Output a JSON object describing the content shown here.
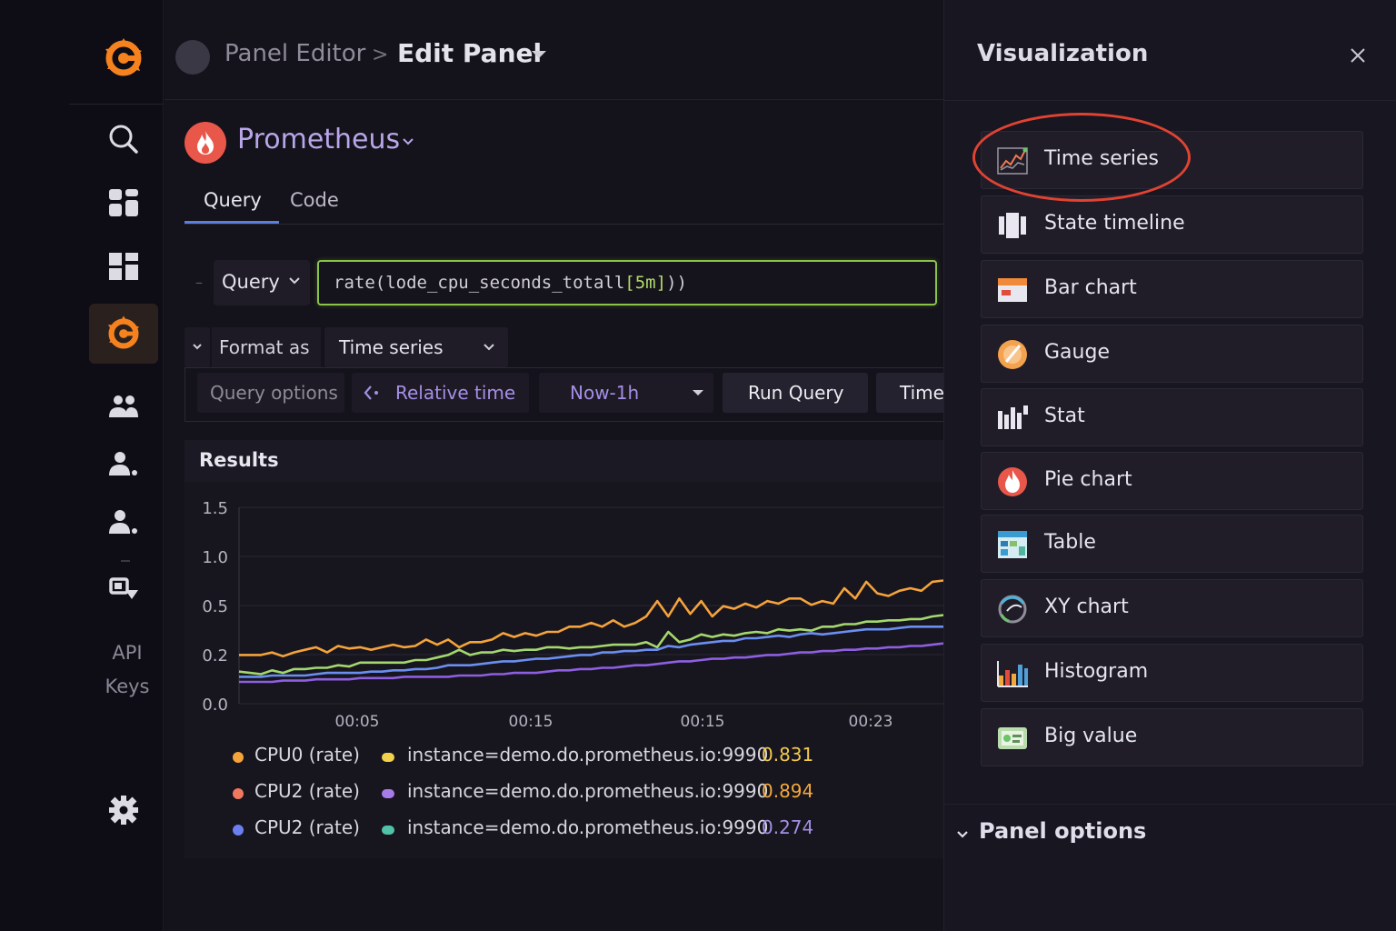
{
  "breadcrumb": {
    "parent": "Panel Editor",
    "separator": ">",
    "current": "Edit Panel"
  },
  "nav": {
    "items": [
      "search-icon",
      "dashboards-icon",
      "panels-icon",
      "grafana-icon",
      "teams-icon",
      "user-icon",
      "users-icon",
      "plugins-icon",
      "gear-icon"
    ],
    "api_keys": [
      "API",
      "Keys"
    ],
    "active": "grafana-icon"
  },
  "datasource": {
    "name": "Prometheus"
  },
  "tabs": [
    {
      "label": "Query"
    },
    {
      "label": "Code"
    }
  ],
  "query": {
    "type_label": "Query",
    "expr_prefix": "rate(lode_cpu_seconds_totall",
    "expr_range": "[5m]",
    "expr_suffix": "))"
  },
  "format": {
    "label": "Format as",
    "value": "Time series"
  },
  "options": {
    "query_options": "Query options",
    "relative_time": "Relative time",
    "time_range": "Now-1h",
    "run_query": "Run Query",
    "time": "Time"
  },
  "results": {
    "title": "Results"
  },
  "colors": {
    "accent": "#a48fe6",
    "orange": "#f5a33b",
    "green": "#a4d86e",
    "blue": "#6b8ff0",
    "purple": "#8e5fe0",
    "highlight_ring": "#e14332"
  },
  "chart_data": {
    "type": "line",
    "y_ticks": [
      "1.5",
      "1.0",
      "0.5",
      "0.2",
      "0.0"
    ],
    "x_ticks": [
      "00:05",
      "00:15",
      "00:15",
      "00:23"
    ],
    "ylim": [
      0,
      1.5
    ],
    "series": [
      {
        "color": "#f5a33b",
        "values": [
          0.38,
          0.38,
          0.38,
          0.4,
          0.37,
          0.4,
          0.42,
          0.44,
          0.4,
          0.45,
          0.43,
          0.44,
          0.42,
          0.44,
          0.46,
          0.44,
          0.45,
          0.5,
          0.46,
          0.5,
          0.44,
          0.48,
          0.48,
          0.5,
          0.55,
          0.52,
          0.55,
          0.53,
          0.56,
          0.56,
          0.6,
          0.6,
          0.63,
          0.6,
          0.65,
          0.6,
          0.63,
          0.68,
          0.8,
          0.68,
          0.82,
          0.7,
          0.8,
          0.68,
          0.76,
          0.74,
          0.78,
          0.75,
          0.8,
          0.78,
          0.82,
          0.82,
          0.77,
          0.8,
          0.78,
          0.9,
          0.82,
          0.95,
          0.86,
          0.84,
          0.88,
          0.9,
          0.88,
          0.95,
          0.96
        ]
      },
      {
        "color": "#a4d86e",
        "values": [
          0.25,
          0.24,
          0.23,
          0.26,
          0.24,
          0.27,
          0.27,
          0.28,
          0.28,
          0.3,
          0.29,
          0.32,
          0.32,
          0.32,
          0.32,
          0.32,
          0.34,
          0.34,
          0.36,
          0.38,
          0.42,
          0.38,
          0.4,
          0.4,
          0.42,
          0.41,
          0.42,
          0.42,
          0.44,
          0.44,
          0.43,
          0.44,
          0.44,
          0.45,
          0.46,
          0.46,
          0.46,
          0.48,
          0.44,
          0.56,
          0.48,
          0.5,
          0.54,
          0.52,
          0.54,
          0.53,
          0.55,
          0.56,
          0.55,
          0.58,
          0.57,
          0.58,
          0.57,
          0.6,
          0.6,
          0.62,
          0.62,
          0.64,
          0.64,
          0.65,
          0.65,
          0.66,
          0.66,
          0.68,
          0.69
        ]
      },
      {
        "color": "#6b8ff0",
        "values": [
          0.21,
          0.21,
          0.21,
          0.22,
          0.22,
          0.22,
          0.22,
          0.23,
          0.24,
          0.24,
          0.24,
          0.24,
          0.25,
          0.25,
          0.26,
          0.26,
          0.27,
          0.27,
          0.28,
          0.3,
          0.3,
          0.3,
          0.31,
          0.32,
          0.33,
          0.33,
          0.34,
          0.35,
          0.35,
          0.36,
          0.37,
          0.38,
          0.38,
          0.4,
          0.4,
          0.41,
          0.41,
          0.42,
          0.42,
          0.45,
          0.44,
          0.46,
          0.47,
          0.48,
          0.49,
          0.49,
          0.51,
          0.51,
          0.52,
          0.53,
          0.52,
          0.54,
          0.55,
          0.54,
          0.55,
          0.56,
          0.57,
          0.58,
          0.58,
          0.58,
          0.59,
          0.6,
          0.6,
          0.6,
          0.6
        ]
      },
      {
        "color": "#8e5fe0",
        "values": [
          0.17,
          0.17,
          0.17,
          0.17,
          0.18,
          0.18,
          0.18,
          0.19,
          0.19,
          0.19,
          0.19,
          0.2,
          0.2,
          0.2,
          0.2,
          0.21,
          0.21,
          0.21,
          0.21,
          0.21,
          0.22,
          0.22,
          0.22,
          0.23,
          0.23,
          0.24,
          0.24,
          0.24,
          0.25,
          0.26,
          0.26,
          0.27,
          0.27,
          0.28,
          0.28,
          0.29,
          0.3,
          0.3,
          0.31,
          0.32,
          0.33,
          0.33,
          0.34,
          0.35,
          0.35,
          0.36,
          0.36,
          0.37,
          0.38,
          0.38,
          0.39,
          0.4,
          0.4,
          0.41,
          0.41,
          0.42,
          0.42,
          0.43,
          0.43,
          0.44,
          0.44,
          0.45,
          0.45,
          0.46,
          0.47
        ]
      }
    ]
  },
  "legend": [
    {
      "name": "CPU0 (rate)",
      "dot": "#f5a33b",
      "pill": "#f2d24b",
      "instance": "instance=demo.do.prometheus.io:9990",
      "value": "0.831",
      "value_color": "#f2c94c"
    },
    {
      "name": "CPU2 (rate)",
      "dot": "#f07860",
      "pill": "#a77be8",
      "instance": "instance=demo.do.prometheus.io:9990",
      "value": "0.894",
      "value_color": "#f2a83b"
    },
    {
      "name": "CPU2 (rate)",
      "dot": "#6b7ff0",
      "pill": "#4fc2a8",
      "instance": "instance=demo.do.prometheus.io:9990",
      "value": "0.274",
      "value_color": "#a48fe6"
    }
  ],
  "visualization": {
    "title": "Visualization",
    "items": [
      {
        "label": "Time series",
        "icon": "time-series-icon"
      },
      {
        "label": "State timeline",
        "icon": "state-timeline-icon"
      },
      {
        "label": "Bar chart",
        "icon": "bar-chart-icon"
      },
      {
        "label": "Gauge",
        "icon": "gauge-icon"
      },
      {
        "label": "Stat",
        "icon": "stat-icon"
      },
      {
        "label": "Pie chart",
        "icon": "pie-chart-icon"
      },
      {
        "label": "Table",
        "icon": "table-icon"
      },
      {
        "label": "XY chart",
        "icon": "xy-chart-icon"
      },
      {
        "label": "Histogram",
        "icon": "histogram-icon"
      },
      {
        "label": "Big value",
        "icon": "big-value-icon"
      }
    ],
    "selected": "Time series"
  },
  "panel_options": {
    "label": "Panel options"
  }
}
